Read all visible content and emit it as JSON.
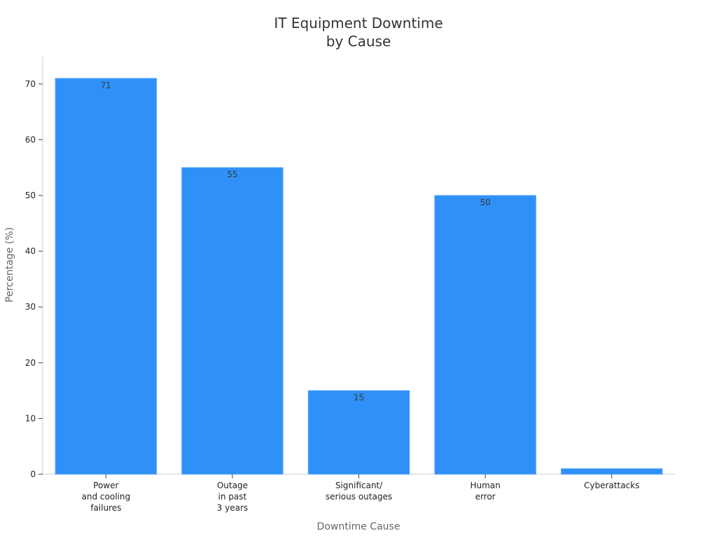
{
  "colors": {
    "bar": "#2f91f7",
    "bar_outline": "#5aa8f9",
    "axis": "#cccccc",
    "tick": "#444444"
  },
  "chart_data": {
    "type": "bar",
    "title": [
      "IT Equipment Downtime",
      "by Cause"
    ],
    "xlabel": "Downtime Cause",
    "ylabel": "Percentage (%)",
    "categories": [
      [
        "Power",
        "and cooling",
        "failures"
      ],
      [
        "Outage",
        "in past",
        "3 years"
      ],
      [
        "Significant/",
        "serious outages"
      ],
      [
        "Human",
        "error"
      ],
      [
        "Cyberattacks"
      ]
    ],
    "values": [
      71,
      55,
      15,
      50,
      1
    ],
    "data_labels": [
      "71",
      "55",
      "15",
      "50",
      ""
    ],
    "ylim": [
      0,
      75
    ],
    "yticks": [
      0,
      10,
      20,
      30,
      40,
      50,
      60,
      70
    ],
    "grid": false,
    "legend": "none"
  }
}
